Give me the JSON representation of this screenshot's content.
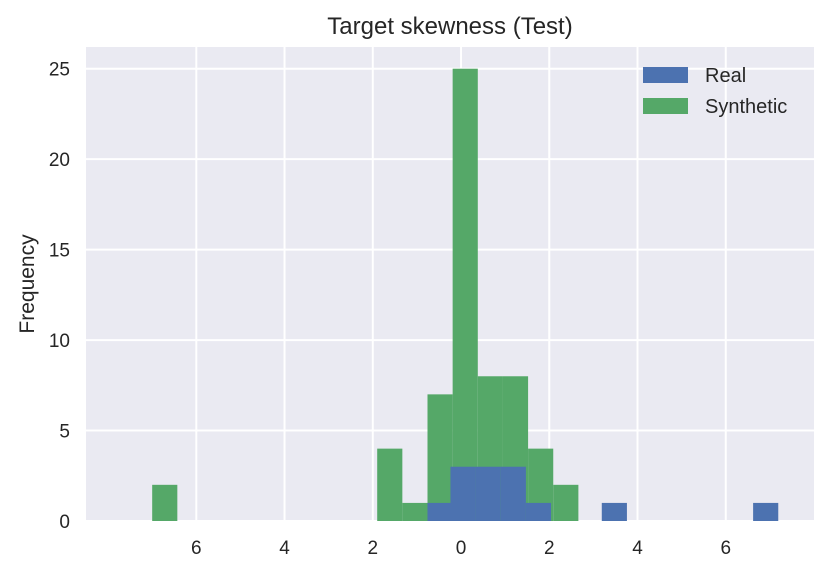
{
  "chart_data": {
    "type": "bar",
    "title": "Target skewness (Test)",
    "xlabel": "",
    "ylabel": "Frequency",
    "xlim": [
      -8.5,
      8.0
    ],
    "ylim": [
      0,
      26.2
    ],
    "grid": true,
    "legend_position": "top-right",
    "x_ticks": [
      -6,
      -4,
      -2,
      0,
      2,
      4,
      6
    ],
    "x_tick_labels": [
      "6",
      "4",
      "2",
      "0",
      "2",
      "4",
      "6"
    ],
    "y_ticks": [
      0,
      5,
      10,
      15,
      20,
      25
    ],
    "y_tick_labels": [
      "0",
      "5",
      "10",
      "15",
      "20",
      "25"
    ],
    "bin_width": 0.57,
    "series": [
      {
        "name": "Synthetic",
        "color": "#55a868",
        "bins": [
          {
            "x0": -7.0,
            "value": 2
          },
          {
            "x0": -1.9,
            "value": 4
          },
          {
            "x0": -1.33,
            "value": 1
          },
          {
            "x0": -0.76,
            "value": 7
          },
          {
            "x0": -0.19,
            "value": 25
          },
          {
            "x0": 0.38,
            "value": 8
          },
          {
            "x0": 0.95,
            "value": 8
          },
          {
            "x0": 1.52,
            "value": 4
          },
          {
            "x0": 2.09,
            "value": 2
          }
        ]
      },
      {
        "name": "Real",
        "color": "#4c72b0",
        "bins": [
          {
            "x0": -0.76,
            "value": 1
          },
          {
            "x0": -0.24,
            "value": 3
          },
          {
            "x0": 0.33,
            "value": 3
          },
          {
            "x0": 0.9,
            "value": 3
          },
          {
            "x0": 1.47,
            "value": 1
          },
          {
            "x0": 3.19,
            "value": 1
          },
          {
            "x0": 6.62,
            "value": 1
          }
        ]
      }
    ],
    "legend_order": [
      "Real",
      "Synthetic"
    ]
  }
}
